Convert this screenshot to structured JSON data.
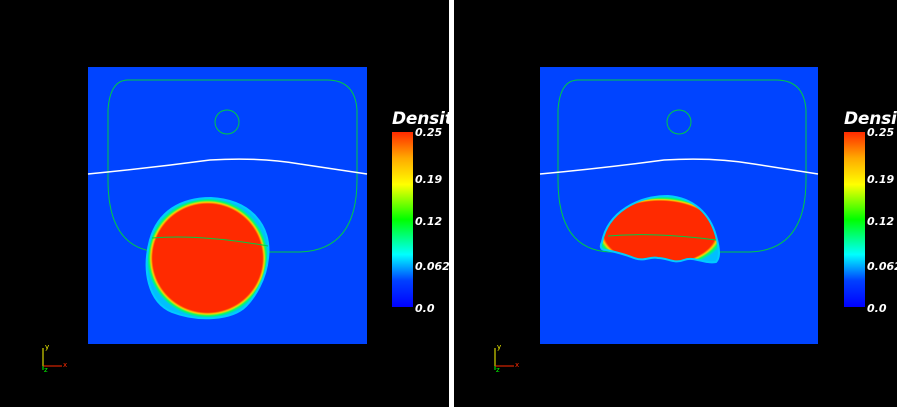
{
  "colorbar": {
    "title": "Density",
    "ticks": [
      "0.25",
      "0.19",
      "0.12",
      "0.062",
      "0.0"
    ],
    "colors": [
      "#ff2a00",
      "#ffaa00",
      "#ffff00",
      "#00ff00",
      "#00ffff",
      "#0040ff",
      "#0000ff"
    ]
  },
  "axes": {
    "x": "x",
    "y": "y",
    "z": "z"
  },
  "colors": {
    "background": "#000000",
    "domain": "#0044ff",
    "contour": "#00cc44",
    "interface": "#ffffff",
    "blob": "#ff2a00"
  },
  "panels": [
    {
      "colorbar_title": "Density",
      "shape": "round-droplet"
    },
    {
      "colorbar_title": "Density",
      "shape": "flattened-droplet"
    }
  ]
}
